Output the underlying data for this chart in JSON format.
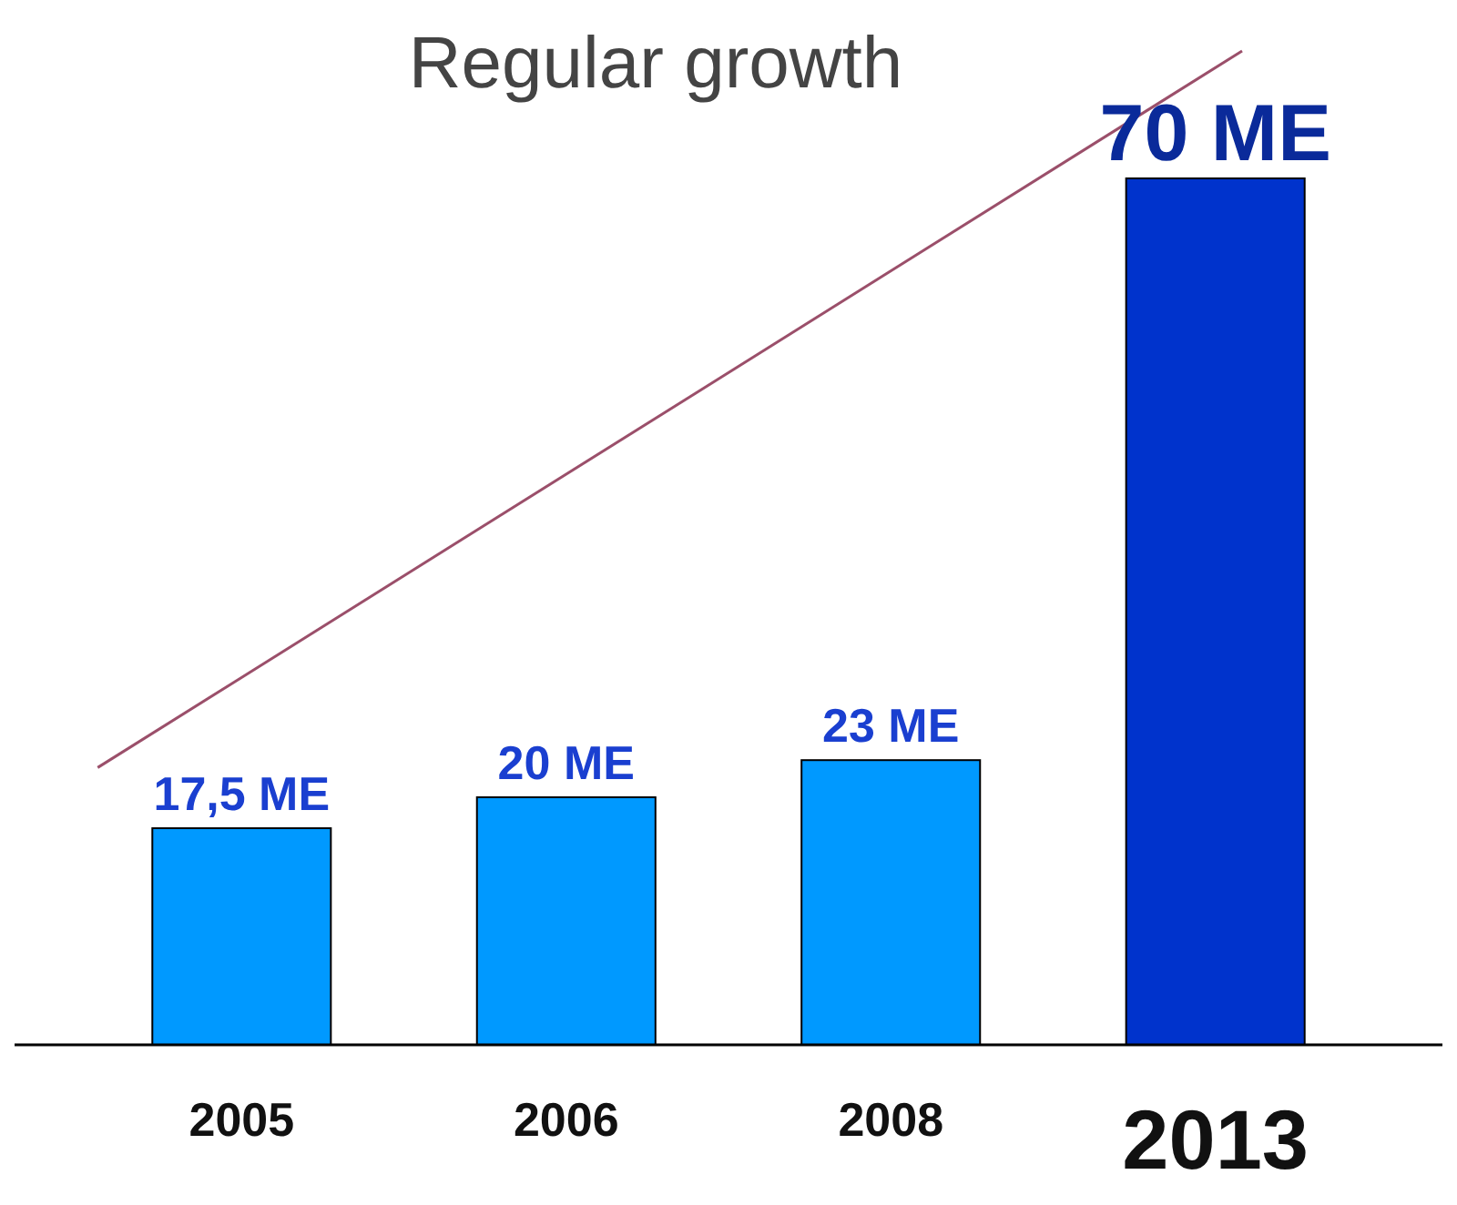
{
  "chart_data": {
    "type": "bar",
    "title": "Regular growth",
    "categories": [
      "2005",
      "2006",
      "2008",
      "2013"
    ],
    "values": [
      17.5,
      20,
      23,
      70
    ],
    "value_labels": [
      "17,5 ME",
      "20 ME",
      "23 ME",
      "70 ME"
    ],
    "colors": [
      "#0099ff",
      "#0099ff",
      "#0099ff",
      "#0033cc"
    ]
  }
}
